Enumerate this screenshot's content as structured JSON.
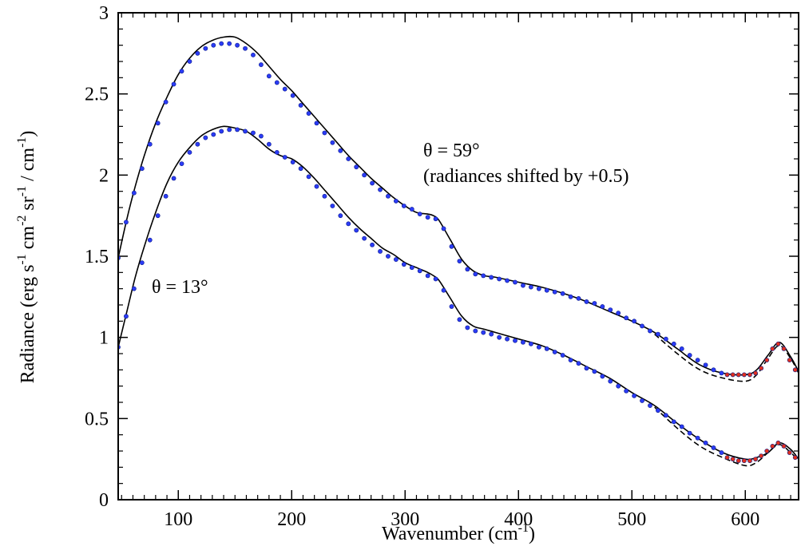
{
  "chart_data": {
    "type": "line",
    "xlabel_parts": [
      "Wavenumber (cm",
      "-1",
      ")"
    ],
    "ylabel_parts": [
      "Radiance (erg s",
      "-1",
      " cm",
      "-2",
      " sr",
      "-1",
      " / cm",
      "-1",
      ")"
    ],
    "xlim": [
      47,
      647
    ],
    "ylim": [
      0,
      3
    ],
    "x_ticks": [
      100,
      200,
      300,
      400,
      500,
      600
    ],
    "x_tick_labels": [
      "100",
      "200",
      "300",
      "400",
      "500",
      "600"
    ],
    "y_ticks": [
      0,
      0.5,
      1,
      1.5,
      2,
      2.5,
      3
    ],
    "y_tick_labels": [
      "0",
      "0.5",
      "1",
      "1.5",
      "2",
      "2.5",
      "3"
    ],
    "annotations": {
      "theta59": "θ = 59°",
      "shift_note": "(radiances shifted by +0.5)",
      "theta13": "θ = 13°"
    },
    "series": [
      {
        "style": "solid-line",
        "color": "#000000",
        "x": [
          47,
          55,
          62,
          70,
          80,
          90,
          100,
          110,
          120,
          130,
          140,
          150,
          160,
          170,
          180,
          190,
          200,
          210,
          220,
          230,
          240,
          250,
          260,
          270,
          280,
          290,
          300,
          310,
          320,
          325,
          330,
          340,
          350,
          360,
          370,
          380,
          400,
          420,
          440,
          460,
          480,
          500,
          520,
          540,
          560,
          580,
          600,
          610,
          620,
          630,
          640,
          647
        ],
        "y": [
          1.49,
          1.74,
          1.93,
          2.12,
          2.32,
          2.48,
          2.62,
          2.72,
          2.79,
          2.83,
          2.85,
          2.85,
          2.81,
          2.75,
          2.67,
          2.59,
          2.52,
          2.44,
          2.36,
          2.28,
          2.2,
          2.12,
          2.05,
          1.98,
          1.92,
          1.86,
          1.81,
          1.77,
          1.76,
          1.75,
          1.72,
          1.6,
          1.48,
          1.41,
          1.38,
          1.37,
          1.34,
          1.31,
          1.27,
          1.22,
          1.16,
          1.1,
          1.03,
          0.93,
          0.83,
          0.78,
          0.77,
          0.8,
          0.89,
          0.97,
          0.88,
          0.79
        ]
      },
      {
        "style": "dashed-line",
        "color": "#000000",
        "x": [
          520,
          540,
          560,
          580,
          600,
          610,
          620,
          630,
          640,
          647
        ],
        "y": [
          1.02,
          0.9,
          0.8,
          0.75,
          0.73,
          0.77,
          0.87,
          0.95,
          0.87,
          0.78
        ]
      },
      {
        "style": "points",
        "color": "#2b3bf5",
        "x": [
          47,
          54,
          61,
          68,
          75,
          82,
          89,
          96,
          103,
          110,
          117,
          124,
          131,
          138,
          145,
          152,
          159,
          166,
          173,
          180,
          187,
          194,
          201,
          208,
          215,
          222,
          229,
          236,
          243,
          250,
          257,
          264,
          271,
          278,
          285,
          292,
          299,
          306,
          313,
          320,
          327,
          334,
          341,
          348,
          355,
          362,
          369,
          376,
          383,
          390,
          397,
          404,
          411,
          418,
          425,
          432,
          439,
          446,
          453,
          460,
          467,
          474,
          481,
          488,
          495,
          502,
          509,
          516,
          523,
          530,
          537,
          544,
          551,
          558,
          565,
          572,
          579
        ],
        "y": [
          1.49,
          1.71,
          1.89,
          2.04,
          2.19,
          2.32,
          2.45,
          2.56,
          2.64,
          2.7,
          2.75,
          2.78,
          2.8,
          2.81,
          2.81,
          2.8,
          2.78,
          2.74,
          2.68,
          2.61,
          2.57,
          2.53,
          2.49,
          2.43,
          2.38,
          2.32,
          2.26,
          2.2,
          2.15,
          2.1,
          2.05,
          2.0,
          1.95,
          1.91,
          1.87,
          1.84,
          1.81,
          1.79,
          1.76,
          1.74,
          1.73,
          1.67,
          1.56,
          1.47,
          1.42,
          1.39,
          1.38,
          1.37,
          1.36,
          1.35,
          1.34,
          1.32,
          1.31,
          1.3,
          1.29,
          1.28,
          1.27,
          1.25,
          1.24,
          1.22,
          1.21,
          1.19,
          1.17,
          1.15,
          1.12,
          1.1,
          1.07,
          1.04,
          1.02,
          0.99,
          0.96,
          0.93,
          0.89,
          0.86,
          0.83,
          0.8,
          0.78
        ]
      },
      {
        "style": "points",
        "color": "#e0301e",
        "x": [
          584,
          589,
          594,
          599,
          604,
          609,
          614,
          619,
          624,
          629,
          634,
          639,
          644
        ],
        "y": [
          0.77,
          0.77,
          0.77,
          0.77,
          0.77,
          0.78,
          0.81,
          0.86,
          0.93,
          0.96,
          0.93,
          0.86,
          0.8
        ]
      },
      {
        "style": "solid-line",
        "color": "#000000",
        "x": [
          47,
          55,
          62,
          70,
          80,
          90,
          100,
          110,
          120,
          130,
          140,
          150,
          160,
          170,
          180,
          190,
          200,
          210,
          220,
          230,
          240,
          250,
          260,
          270,
          280,
          290,
          300,
          310,
          320,
          325,
          330,
          340,
          350,
          360,
          370,
          380,
          400,
          420,
          440,
          460,
          480,
          500,
          520,
          540,
          560,
          580,
          600,
          610,
          620,
          630,
          640,
          647
        ],
        "y": [
          0.94,
          1.17,
          1.37,
          1.56,
          1.77,
          1.95,
          2.08,
          2.17,
          2.24,
          2.28,
          2.3,
          2.29,
          2.27,
          2.22,
          2.16,
          2.12,
          2.1,
          2.05,
          1.98,
          1.9,
          1.82,
          1.74,
          1.67,
          1.61,
          1.55,
          1.51,
          1.46,
          1.43,
          1.4,
          1.38,
          1.35,
          1.24,
          1.13,
          1.07,
          1.05,
          1.03,
          0.99,
          0.95,
          0.89,
          0.82,
          0.75,
          0.66,
          0.58,
          0.47,
          0.37,
          0.29,
          0.25,
          0.26,
          0.29,
          0.35,
          0.31,
          0.25
        ]
      },
      {
        "style": "dashed-line",
        "color": "#000000",
        "x": [
          520,
          540,
          560,
          580,
          600,
          610,
          620,
          630,
          640,
          647
        ],
        "y": [
          0.57,
          0.44,
          0.33,
          0.26,
          0.21,
          0.23,
          0.29,
          0.34,
          0.29,
          0.24
        ]
      },
      {
        "style": "points",
        "color": "#2b3bf5",
        "x": [
          47,
          54,
          61,
          68,
          75,
          82,
          89,
          96,
          103,
          110,
          117,
          124,
          131,
          138,
          145,
          152,
          159,
          166,
          173,
          180,
          187,
          194,
          201,
          208,
          215,
          222,
          229,
          236,
          243,
          250,
          257,
          264,
          271,
          278,
          285,
          292,
          299,
          306,
          313,
          320,
          327,
          334,
          341,
          348,
          355,
          362,
          369,
          376,
          383,
          390,
          397,
          404,
          411,
          418,
          425,
          432,
          439,
          446,
          453,
          460,
          467,
          474,
          481,
          488,
          495,
          502,
          509,
          516,
          523,
          530,
          537,
          544,
          551,
          558,
          565,
          572,
          579
        ],
        "y": [
          0.94,
          1.13,
          1.3,
          1.46,
          1.6,
          1.75,
          1.87,
          1.98,
          2.07,
          2.14,
          2.19,
          2.23,
          2.25,
          2.27,
          2.28,
          2.28,
          2.27,
          2.26,
          2.24,
          2.19,
          2.14,
          2.11,
          2.08,
          2.04,
          1.99,
          1.93,
          1.87,
          1.81,
          1.75,
          1.7,
          1.66,
          1.61,
          1.57,
          1.53,
          1.5,
          1.48,
          1.45,
          1.43,
          1.41,
          1.38,
          1.36,
          1.29,
          1.19,
          1.11,
          1.06,
          1.04,
          1.03,
          1.02,
          1.0,
          0.99,
          0.98,
          0.97,
          0.96,
          0.94,
          0.93,
          0.91,
          0.89,
          0.86,
          0.84,
          0.81,
          0.79,
          0.76,
          0.73,
          0.7,
          0.67,
          0.64,
          0.61,
          0.58,
          0.55,
          0.52,
          0.48,
          0.45,
          0.41,
          0.38,
          0.35,
          0.32,
          0.29
        ]
      },
      {
        "style": "points",
        "color": "#e0301e",
        "x": [
          584,
          589,
          594,
          599,
          604,
          609,
          614,
          619,
          624,
          629,
          634,
          639,
          644
        ],
        "y": [
          0.26,
          0.25,
          0.24,
          0.24,
          0.24,
          0.25,
          0.27,
          0.3,
          0.33,
          0.35,
          0.33,
          0.29,
          0.26
        ]
      }
    ]
  }
}
